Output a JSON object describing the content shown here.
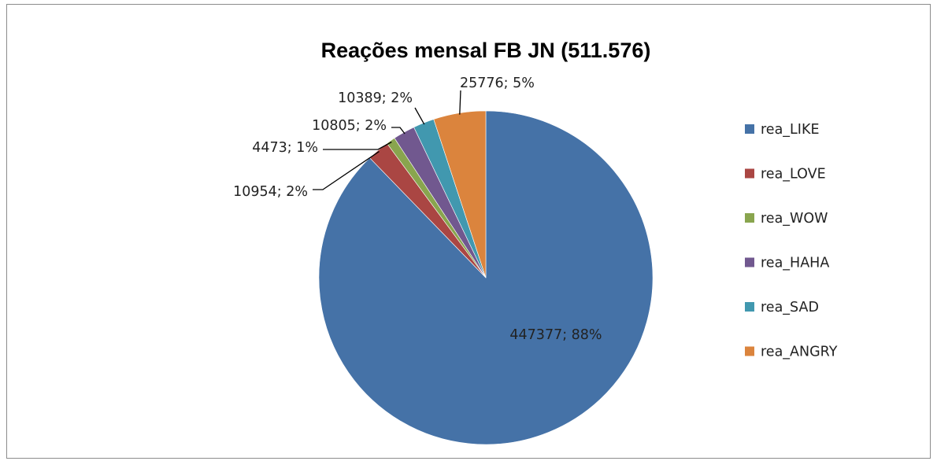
{
  "chart_data": {
    "type": "pie",
    "title": "Reações mensal FB JN (511.576)",
    "categories": [
      "rea_LIKE",
      "rea_LOVE",
      "rea_WOW",
      "rea_HAHA",
      "rea_SAD",
      "rea_ANGRY"
    ],
    "values": [
      447377,
      10954,
      4473,
      10805,
      10389,
      25776
    ],
    "percent_labels": [
      "88%",
      "2%",
      "1%",
      "2%",
      "2%",
      "5%"
    ],
    "data_labels": [
      "447377; 88%",
      "10954; 2%",
      "4473; 1%",
      "10805; 2%",
      "10389; 2%",
      "25776; 5%"
    ],
    "colors": [
      "#4572A7",
      "#AA4643",
      "#89A54E",
      "#71588F",
      "#4198AF",
      "#DB843D"
    ],
    "legend": "right",
    "start": "top",
    "direction": "clockwise"
  }
}
